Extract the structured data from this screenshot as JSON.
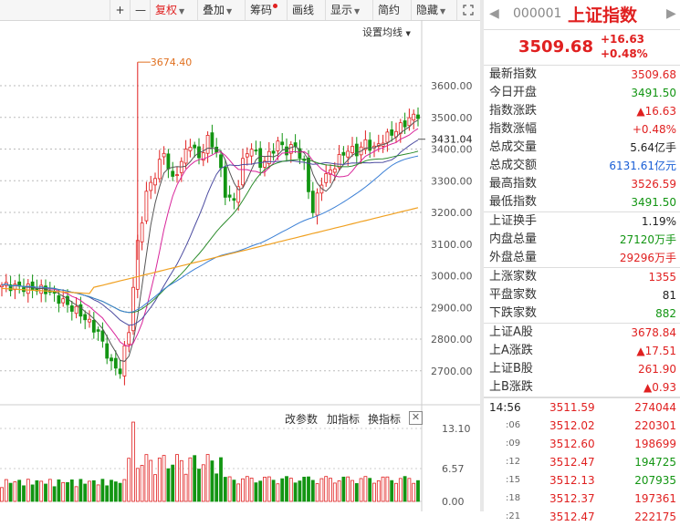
{
  "toolbar": {
    "plus": "+",
    "minus": "—",
    "fuquan": "复权",
    "diejia": "叠加",
    "chouma": "筹码",
    "huaxian": "画线",
    "xianshi": "显示",
    "jianyue": "简约",
    "yincang": "隐藏",
    "expand_icon": "fullscreen-icon"
  },
  "chart": {
    "setting_label": "设置均线",
    "peak_label": "3674.40",
    "current_price_label": "3431.04",
    "price_ticks": [
      "3600.00",
      "3500.00",
      "3400.00",
      "3300.00",
      "3200.00",
      "3100.00",
      "3000.00",
      "2900.00",
      "2800.00",
      "2700.00"
    ],
    "vol_ticks": [
      "13.10",
      "6.57",
      "0.00"
    ],
    "indicator_buttons": [
      "改参数",
      "加指标",
      "换指标"
    ],
    "close_label": "✕"
  },
  "colors": {
    "up": "#e02020",
    "down": "#129512",
    "ma5": "#555555",
    "ma10": "#d8249a",
    "ma20": "#4b4ba0",
    "ma30": "#2c8c2c",
    "ma60": "#3a7fd5",
    "ma120": "#f0a020"
  },
  "quote": {
    "code": "000001",
    "name": "上证指数",
    "price": "3509.68",
    "change": "+16.63",
    "change_pct": "+0.48%"
  },
  "stats": [
    {
      "label": "最新指数",
      "value": "3509.68",
      "color": "red"
    },
    {
      "label": "今日开盘",
      "value": "3491.50",
      "color": "green"
    },
    {
      "label": "指数涨跌",
      "value": "▲16.63",
      "color": "red"
    },
    {
      "label": "指数涨幅",
      "value": "+0.48%",
      "color": "red"
    },
    {
      "label": "总成交量",
      "value": "5.64亿手",
      "color": "black"
    },
    {
      "label": "总成交额",
      "value": "6131.61亿元",
      "color": "blue"
    },
    {
      "label": "最高指数",
      "value": "3526.59",
      "color": "red"
    },
    {
      "label": "最低指数",
      "value": "3491.50",
      "color": "green"
    }
  ],
  "stats2": [
    {
      "label": "上证换手",
      "value": "1.19%",
      "color": "black"
    },
    {
      "label": "内盘总量",
      "value": "27120万手",
      "color": "green"
    },
    {
      "label": "外盘总量",
      "value": "29296万手",
      "color": "red"
    }
  ],
  "stats3": [
    {
      "label": "上涨家数",
      "value": "1355",
      "color": "red"
    },
    {
      "label": "平盘家数",
      "value": "81",
      "color": "black"
    },
    {
      "label": "下跌家数",
      "value": "882",
      "color": "green"
    }
  ],
  "stats4": [
    {
      "label": "上证A股",
      "value": "3678.84",
      "color": "red"
    },
    {
      "label": "上A涨跌",
      "value": "▲17.51",
      "color": "red"
    },
    {
      "label": "上证B股",
      "value": "261.90",
      "color": "red"
    },
    {
      "label": "上B涨跌",
      "value": "▲0.93",
      "color": "red"
    }
  ],
  "ticks": [
    {
      "time": "14:56",
      "price": "3511.59",
      "vol": "274044",
      "pc": "red",
      "vc": "red"
    },
    {
      "time": ":06",
      "price": "3512.02",
      "vol": "220301",
      "pc": "red",
      "vc": "red"
    },
    {
      "time": ":09",
      "price": "3512.60",
      "vol": "198699",
      "pc": "red",
      "vc": "red"
    },
    {
      "time": ":12",
      "price": "3512.47",
      "vol": "194725",
      "pc": "red",
      "vc": "green"
    },
    {
      "time": ":15",
      "price": "3512.13",
      "vol": "207935",
      "pc": "red",
      "vc": "green"
    },
    {
      "time": ":18",
      "price": "3512.37",
      "vol": "197361",
      "pc": "red",
      "vc": "red"
    },
    {
      "time": ":21",
      "price": "3512.47",
      "vol": "222175",
      "pc": "red",
      "vc": "red"
    }
  ]
}
